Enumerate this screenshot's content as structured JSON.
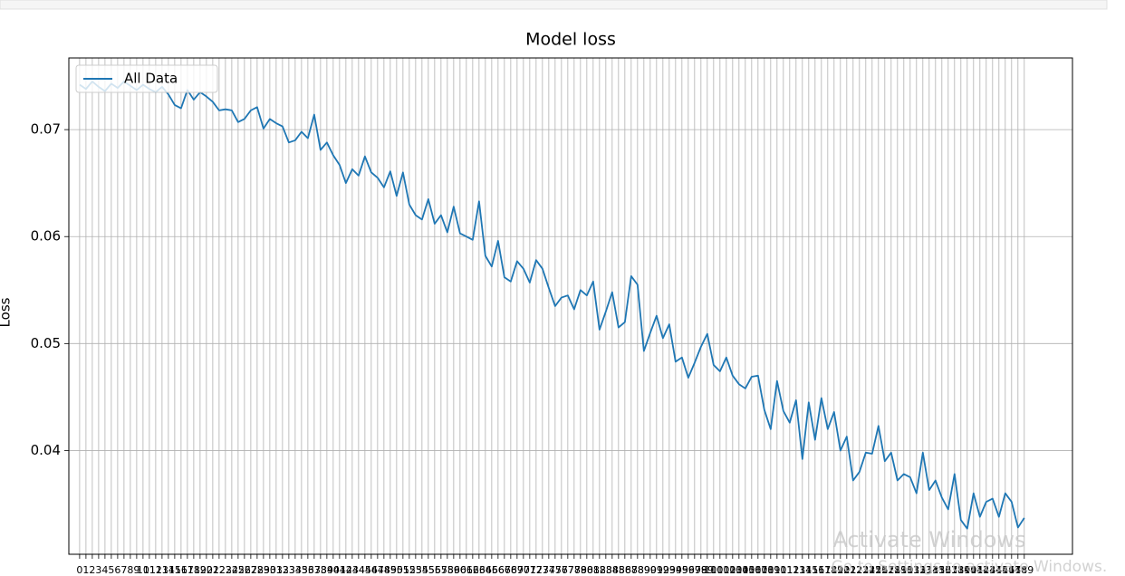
{
  "chart_data": {
    "type": "line",
    "title": "Model loss",
    "ylabel": "Loss",
    "x": [
      0,
      1,
      2,
      3,
      4,
      5,
      6,
      7,
      8,
      9,
      10,
      11,
      12,
      13,
      14,
      15,
      16,
      17,
      18,
      19,
      20,
      21,
      22,
      23,
      24,
      25,
      26,
      27,
      28,
      29,
      30,
      31,
      32,
      33,
      34,
      35,
      36,
      37,
      38,
      39,
      40,
      41,
      42,
      43,
      44,
      45,
      46,
      47,
      48,
      49,
      50,
      51,
      52,
      53,
      54,
      55,
      56,
      57,
      58,
      59,
      60,
      61,
      62,
      63,
      64,
      65,
      66,
      67,
      68,
      69,
      70,
      71,
      72,
      73,
      74,
      75,
      76,
      77,
      78,
      79,
      80,
      81,
      82,
      83,
      84,
      85,
      86,
      87,
      88,
      89,
      90,
      91,
      92,
      93,
      94,
      95,
      96,
      97,
      98,
      99,
      100,
      101,
      102,
      103,
      104,
      105,
      106,
      107,
      108,
      109,
      110,
      111,
      112,
      113,
      114,
      115,
      116,
      117,
      118,
      119,
      120,
      121,
      122,
      123,
      124,
      125,
      126,
      127,
      128,
      129,
      130,
      131,
      132,
      133,
      134,
      135,
      136,
      137,
      138,
      139,
      140,
      141,
      142,
      143,
      144,
      145,
      146,
      147,
      148,
      149
    ],
    "series": [
      {
        "name": "All Data",
        "color": "#1f77b4",
        "values": [
          0.0742,
          0.0738,
          0.0745,
          0.074,
          0.0736,
          0.0743,
          0.0739,
          0.0745,
          0.0741,
          0.0737,
          0.0742,
          0.0738,
          0.0735,
          0.074,
          0.0733,
          0.0723,
          0.072,
          0.0737,
          0.0728,
          0.0735,
          0.0731,
          0.0726,
          0.0718,
          0.0719,
          0.0718,
          0.0707,
          0.071,
          0.0718,
          0.0721,
          0.0701,
          0.071,
          0.0706,
          0.0703,
          0.0688,
          0.069,
          0.0698,
          0.0692,
          0.0714,
          0.0681,
          0.0688,
          0.0676,
          0.0667,
          0.065,
          0.0663,
          0.0657,
          0.0675,
          0.066,
          0.0655,
          0.0646,
          0.0661,
          0.0638,
          0.066,
          0.063,
          0.062,
          0.0616,
          0.0635,
          0.0612,
          0.062,
          0.0604,
          0.0628,
          0.0603,
          0.06,
          0.0597,
          0.0633,
          0.0582,
          0.0572,
          0.0596,
          0.0562,
          0.0558,
          0.0577,
          0.057,
          0.0557,
          0.0578,
          0.057,
          0.0552,
          0.0535,
          0.0543,
          0.0545,
          0.0532,
          0.055,
          0.0545,
          0.0558,
          0.0513,
          0.053,
          0.0548,
          0.0515,
          0.052,
          0.0563,
          0.0555,
          0.0493,
          0.051,
          0.0526,
          0.0505,
          0.0518,
          0.0483,
          0.0487,
          0.0468,
          0.0482,
          0.0497,
          0.0509,
          0.048,
          0.0474,
          0.0487,
          0.047,
          0.0462,
          0.0458,
          0.0469,
          0.047,
          0.0438,
          0.042,
          0.0465,
          0.0437,
          0.0426,
          0.0447,
          0.0392,
          0.0445,
          0.041,
          0.0449,
          0.042,
          0.0436,
          0.04,
          0.0413,
          0.0372,
          0.038,
          0.0398,
          0.0397,
          0.0423,
          0.039,
          0.0398,
          0.0372,
          0.0378,
          0.0375,
          0.036,
          0.0398,
          0.0363,
          0.0372,
          0.0356,
          0.0345,
          0.0378,
          0.0335,
          0.0327,
          0.036,
          0.0338,
          0.0352,
          0.0355,
          0.0338,
          0.036,
          0.0352,
          0.0328,
          0.0337
        ]
      }
    ],
    "xlim": [
      -1.7,
      156.6
    ],
    "xticks": [
      0,
      1,
      2,
      3,
      4,
      5,
      6,
      7,
      8,
      9,
      10,
      11,
      12,
      13,
      14,
      15,
      16,
      17,
      18,
      19,
      20,
      21,
      22,
      23,
      24,
      25,
      26,
      27,
      28,
      29,
      30,
      31,
      32,
      33,
      34,
      35,
      36,
      37,
      38,
      39,
      40,
      41,
      42,
      43,
      44,
      45,
      46,
      47,
      48,
      49,
      50,
      51,
      52,
      53,
      54,
      55,
      56,
      57,
      58,
      59,
      60,
      61,
      62,
      63,
      64,
      65,
      66,
      67,
      68,
      69,
      70,
      71,
      72,
      73,
      74,
      75,
      76,
      77,
      78,
      79,
      80,
      81,
      82,
      83,
      84,
      85,
      86,
      87,
      88,
      89,
      90,
      91,
      92,
      93,
      94,
      95,
      96,
      97,
      98,
      99,
      100,
      101,
      102,
      103,
      104,
      105,
      106,
      107,
      108,
      109,
      110,
      111,
      112,
      113,
      114,
      115,
      116,
      117,
      118,
      119,
      120,
      121,
      122,
      123,
      124,
      125,
      126,
      127,
      128,
      129,
      130,
      131,
      132,
      133,
      134,
      135,
      136,
      137,
      138,
      139,
      140,
      141,
      142,
      143,
      144,
      145,
      146,
      147,
      148,
      149
    ],
    "ylim": [
      0.0303,
      0.0767
    ],
    "yticks": [
      0.04,
      0.05,
      0.06,
      0.07
    ],
    "grid": true,
    "legend": "upper left"
  },
  "watermark": {
    "line1": "Activate Windows",
    "line2": "Go to Settings to activate Windows."
  }
}
